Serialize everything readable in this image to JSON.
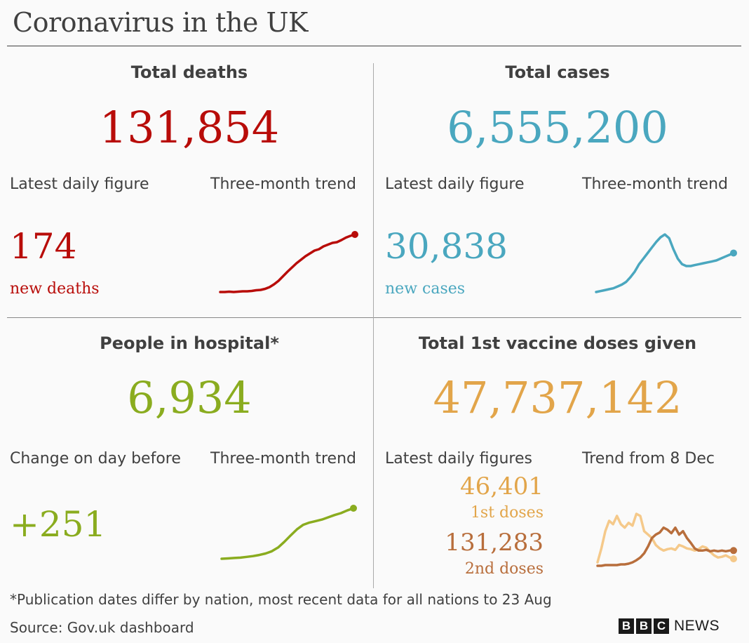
{
  "title": "Coronavirus in the UK",
  "colors": {
    "deaths": "#b80c09",
    "cases": "#4aa7bf",
    "hospital": "#8aac1f",
    "vaccine1": "#e2a54a",
    "vaccine1_trend": "#f5c98a",
    "vaccine2": "#b86e3c"
  },
  "deaths": {
    "heading": "Total deaths",
    "total": "131,854",
    "latest_label": "Latest daily figure",
    "trend_label": "Three-month trend",
    "daily": "174",
    "daily_unit": "new deaths"
  },
  "cases": {
    "heading": "Total cases",
    "total": "6,555,200",
    "latest_label": "Latest daily figure",
    "trend_label": "Three-month trend",
    "daily": "30,838",
    "daily_unit": "new cases"
  },
  "hospital": {
    "heading": "People in hospital*",
    "total": "6,934",
    "latest_label": "Change on day before",
    "trend_label": "Three-month trend",
    "daily": "+251"
  },
  "vaccine": {
    "heading": "Total 1st vaccine doses given",
    "total": "47,737,142",
    "latest_label": "Latest daily figures",
    "trend_label": "Trend from 8 Dec",
    "first_daily": "46,401",
    "first_unit": "1st doses",
    "second_daily": "131,283",
    "second_unit": "2nd doses"
  },
  "footnote": "*Publication dates differ by nation, most recent data for all nations to 23 Aug",
  "source": "Source: Gov.uk dashboard",
  "brand": {
    "letters": [
      "B",
      "B",
      "C"
    ],
    "news": "NEWS"
  },
  "chart_data": [
    {
      "type": "line",
      "series": [
        {
          "values": [
            10,
            10,
            11,
            10,
            11,
            12,
            12,
            13,
            15,
            16,
            19,
            24,
            32,
            42,
            55,
            68,
            80,
            92,
            102,
            112,
            120,
            128,
            132,
            140,
            145,
            150,
            152,
            158,
            165,
            170,
            174
          ]
        }
      ]
    },
    {
      "type": "line",
      "series": [
        {
          "values": [
            4,
            5,
            6,
            7,
            8,
            10,
            12,
            15,
            20,
            26,
            34,
            40,
            46,
            52,
            58,
            63,
            66,
            62,
            50,
            40,
            34,
            32,
            32,
            33,
            34,
            35,
            36,
            37,
            38,
            40,
            42,
            44,
            46
          ]
        }
      ]
    },
    {
      "type": "line",
      "series": [
        {
          "values": [
            0,
            1,
            2,
            3,
            5,
            7,
            10,
            14,
            20,
            30,
            45,
            62,
            78,
            90,
            96,
            100,
            104,
            110,
            116,
            121,
            128,
            134
          ]
        }
      ]
    },
    {
      "type": "line",
      "series": [
        {
          "name": "1st doses",
          "values": [
            5,
            25,
            50,
            65,
            60,
            72,
            60,
            55,
            62,
            58,
            75,
            72,
            50,
            45,
            40,
            30,
            25,
            22,
            24,
            25,
            23,
            30,
            28,
            25,
            24,
            22,
            24,
            28,
            26,
            20,
            15,
            12,
            13,
            15,
            12,
            10
          ]
        },
        {
          "name": "2nd doses",
          "values": [
            0,
            0,
            1,
            1,
            1,
            1,
            2,
            2,
            3,
            5,
            8,
            12,
            18,
            28,
            40,
            45,
            48,
            55,
            52,
            47,
            55,
            45,
            50,
            40,
            33,
            25,
            22,
            22,
            23,
            21,
            22,
            21,
            22,
            21,
            22,
            22
          ]
        }
      ]
    }
  ]
}
